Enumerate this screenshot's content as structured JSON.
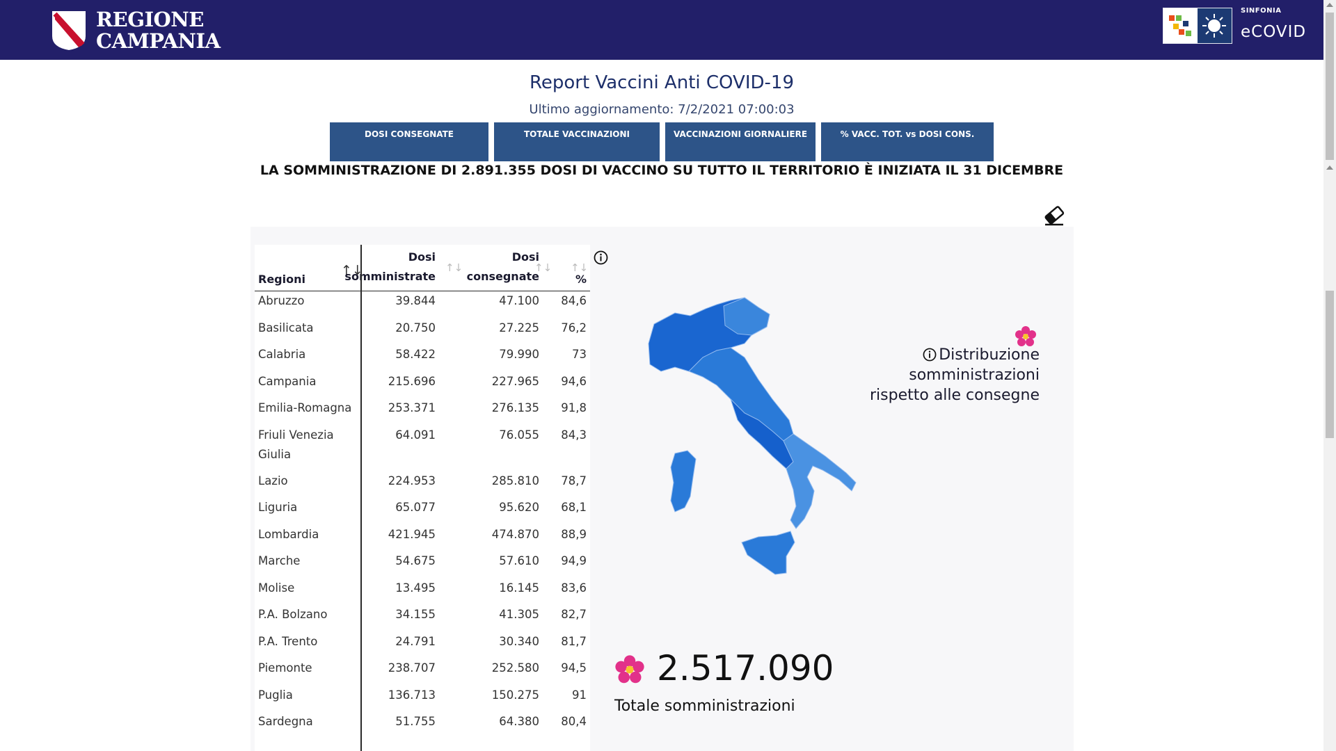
{
  "header": {
    "brand_line1": "REGIONE",
    "brand_line2": "CAMPANIA",
    "partner_top": "SINFONIA",
    "partner_name": "eCOVID"
  },
  "page": {
    "title": "Report Vaccini Anti COVID-19",
    "updated": "Ultimo aggiornamento: 7/2/2021 07:00:03",
    "banner": "LA SOMMINISTRAZIONE DI 2.891.355 DOSI DI VACCINO SU TUTTO IL TERRITORIO È INIZIATA IL 31 DICEMBRE"
  },
  "tabs": [
    {
      "label": "DOSI  CONSEGNATE"
    },
    {
      "label": "TOTALE VACCINAZIONI"
    },
    {
      "label": "VACCINAZIONI GIORNALIERE"
    },
    {
      "label": "% VACC. TOT. vs DOSI CONS."
    }
  ],
  "table": {
    "headers": {
      "region": "Regioni",
      "administered_1": "Dosi",
      "administered_2": "somministrate",
      "delivered_1": "Dosi",
      "delivered_2": "consegnate",
      "pct": "%"
    },
    "rows": [
      {
        "region": "Abruzzo",
        "administered": "39.844",
        "delivered": "47.100",
        "pct": "84,6"
      },
      {
        "region": "Basilicata",
        "administered": "20.750",
        "delivered": "27.225",
        "pct": "76,2"
      },
      {
        "region": "Calabria",
        "administered": "58.422",
        "delivered": "79.990",
        "pct": "73"
      },
      {
        "region": "Campania",
        "administered": "215.696",
        "delivered": "227.965",
        "pct": "94,6"
      },
      {
        "region": "Emilia-Romagna",
        "administered": "253.371",
        "delivered": "276.135",
        "pct": "91,8"
      },
      {
        "region": "Friuli Venezia Giulia",
        "administered": "64.091",
        "delivered": "76.055",
        "pct": "84,3"
      },
      {
        "region": "Lazio",
        "administered": "224.953",
        "delivered": "285.810",
        "pct": "78,7"
      },
      {
        "region": "Liguria",
        "administered": "65.077",
        "delivered": "95.620",
        "pct": "68,1"
      },
      {
        "region": "Lombardia",
        "administered": "421.945",
        "delivered": "474.870",
        "pct": "88,9"
      },
      {
        "region": "Marche",
        "administered": "54.675",
        "delivered": "57.610",
        "pct": "94,9"
      },
      {
        "region": "Molise",
        "administered": "13.495",
        "delivered": "16.145",
        "pct": "83,6"
      },
      {
        "region": "P.A. Bolzano",
        "administered": "34.155",
        "delivered": "41.305",
        "pct": "82,7"
      },
      {
        "region": "P.A. Trento",
        "administered": "24.791",
        "delivered": "30.340",
        "pct": "81,7"
      },
      {
        "region": "Piemonte",
        "administered": "238.707",
        "delivered": "252.580",
        "pct": "94,5"
      },
      {
        "region": "Puglia",
        "administered": "136.713",
        "delivered": "150.275",
        "pct": "91"
      },
      {
        "region": "Sardegna",
        "administered": "51.755",
        "delivered": "64.380",
        "pct": "80,4"
      }
    ]
  },
  "map_panel": {
    "legend_line1": "Distribuzione somministrazioni",
    "legend_line2": "rispetto alle consegne",
    "total_value": "2.517.090",
    "total_label": "Totale somministrazioni"
  },
  "colors": {
    "header_bg": "#221f69",
    "tab_bg": "#2d5488",
    "map_dark": "#1560cc",
    "map_mid": "#2a7ad8",
    "map_light": "#4a92e2",
    "flower": "#e2318a"
  },
  "icons": [
    "shield-logo-icon",
    "ecovid-logo-icon",
    "eraser-icon",
    "info-icon",
    "flower-icon",
    "sort-icon"
  ]
}
